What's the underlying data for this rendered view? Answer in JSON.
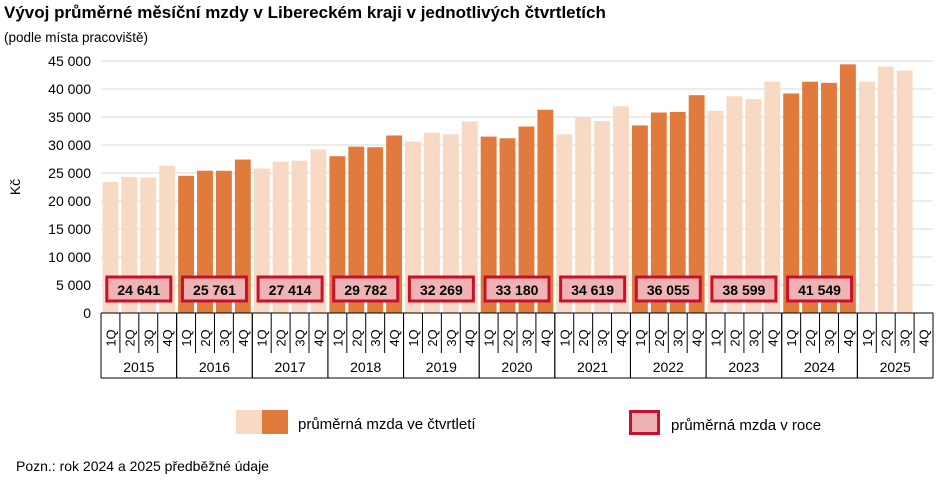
{
  "title": "Vývoj průměrné měsíční mzdy v Libereckém kraji v jednotlivých čtvrtletích",
  "subtitle": "(podle místa pracoviště)",
  "note": "Pozn.: rok 2024 a 2025 předběžné údaje",
  "legend": {
    "quarterly": "průměrná mzda ve čtvrtletí",
    "annual": "průměrná mzda v roce"
  },
  "colors": {
    "light": "#f8d9c3",
    "dark": "#e07b3d",
    "annual_fill": "#efb3b3",
    "annual_border": "#c8102e",
    "grid": "#d9d9d9",
    "axis": "#000000"
  },
  "chart_data": {
    "type": "bar",
    "ylabel": "Kč",
    "ylim": [
      0,
      45000
    ],
    "y_ticks": [
      "0",
      "5 000",
      "10 000",
      "15 000",
      "20 000",
      "25 000",
      "30 000",
      "35 000",
      "40 000",
      "45 000"
    ],
    "quarter_labels": [
      "1Q",
      "2Q",
      "3Q",
      "4Q"
    ],
    "years": [
      {
        "year": "2015",
        "quarters": [
          23400,
          24300,
          24200,
          26300
        ],
        "annual": "24 641"
      },
      {
        "year": "2016",
        "quarters": [
          24500,
          25400,
          25400,
          27400
        ],
        "annual": "25 761"
      },
      {
        "year": "2017",
        "quarters": [
          25800,
          27000,
          27200,
          29200
        ],
        "annual": "27 414"
      },
      {
        "year": "2018",
        "quarters": [
          28000,
          29700,
          29600,
          31700
        ],
        "annual": "29 782"
      },
      {
        "year": "2019",
        "quarters": [
          30600,
          32200,
          31900,
          34200
        ],
        "annual": "32 269"
      },
      {
        "year": "2020",
        "quarters": [
          31500,
          31200,
          33300,
          36300
        ],
        "annual": "33 180"
      },
      {
        "year": "2021",
        "quarters": [
          31900,
          35000,
          34300,
          36900
        ],
        "annual": "34 619"
      },
      {
        "year": "2022",
        "quarters": [
          33500,
          35800,
          35900,
          38900
        ],
        "annual": "36 055"
      },
      {
        "year": "2023",
        "quarters": [
          36100,
          38700,
          38200,
          41300
        ],
        "annual": "38 599"
      },
      {
        "year": "2024",
        "quarters": [
          39200,
          41300,
          41100,
          44400
        ],
        "annual": "41 549"
      },
      {
        "year": "2025",
        "quarters": [
          41300,
          44000,
          43300,
          null
        ],
        "annual": ""
      }
    ]
  }
}
